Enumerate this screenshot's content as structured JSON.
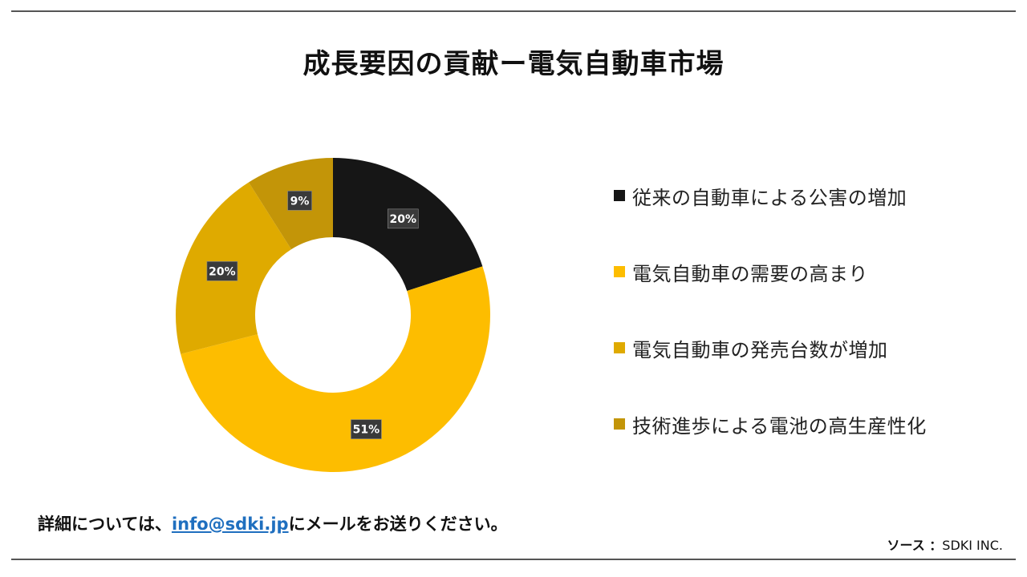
{
  "title": "成長要因の貢献ー電気自動車市場",
  "chart_data": {
    "type": "pie",
    "donut": true,
    "title": "成長要因の貢献ー電気自動車市場",
    "legend_position": "right",
    "slices": [
      {
        "label": "従来の自動車による公害の増加",
        "value": 20,
        "display": "20%",
        "color": "#161616"
      },
      {
        "label": "電気自動車の需要の高まり",
        "value": 51,
        "display": "51%",
        "color": "#fdbd00"
      },
      {
        "label": "電気自動車の発売台数が増加",
        "value": 20,
        "display": "20%",
        "color": "#dfaa00"
      },
      {
        "label": "技術進歩による電池の高生産性化",
        "value": 9,
        "display": "9%",
        "color": "#c39508"
      }
    ]
  },
  "footer": {
    "contact_prefix": "詳細については、",
    "contact_email": "info@sdki.jp",
    "contact_suffix": "にメールをお送りください。",
    "source_label": "ソース ：",
    "source_value": "SDKI INC."
  }
}
